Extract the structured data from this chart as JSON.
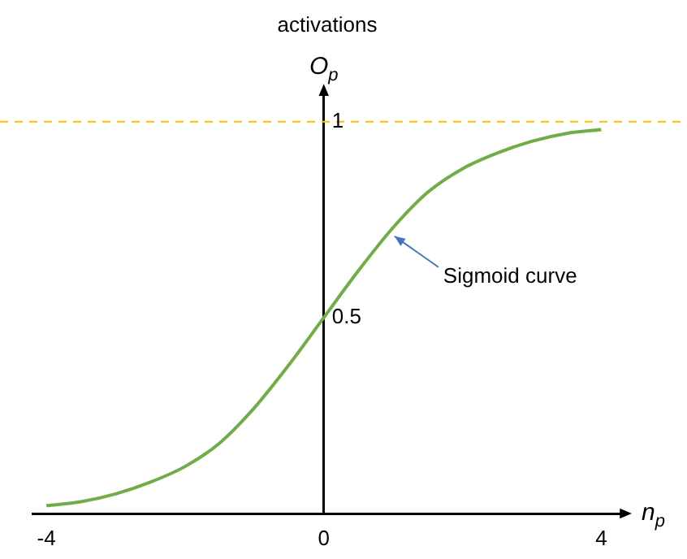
{
  "chart_data": {
    "type": "line",
    "title": "activations",
    "xlabel": "n$_{p}$",
    "ylabel": "O$_{p}$",
    "x": [
      -4,
      -3.5,
      -3,
      -2.5,
      -2,
      -1.5,
      -1,
      -0.5,
      0,
      0.5,
      1,
      1.5,
      2,
      2.5,
      3,
      3.5,
      4
    ],
    "series": [
      {
        "color": "#70ad47",
        "values": [
          0.02,
          0.03,
          0.05,
          0.08,
          0.12,
          0.18,
          0.27,
          0.38,
          0.5,
          0.62,
          0.73,
          0.82,
          0.88,
          0.92,
          0.95,
          0.97,
          0.98
        ]
      }
    ],
    "xlim": [
      -4.2,
      4.3
    ],
    "ylim": [
      0,
      1.08
    ],
    "xticks": [
      -4,
      0,
      4
    ],
    "yticks": [
      0.5,
      1
    ],
    "ref_lines": [
      {
        "axis": "y",
        "value": 1,
        "color": "#ffc000",
        "line_style": "dashed"
      }
    ],
    "annotations": [
      {
        "text": "Sigmoid curve",
        "x": 0.95,
        "y": 0.72
      }
    ],
    "grid": false,
    "legend": false,
    "marker": "none",
    "line_style": "solid"
  }
}
